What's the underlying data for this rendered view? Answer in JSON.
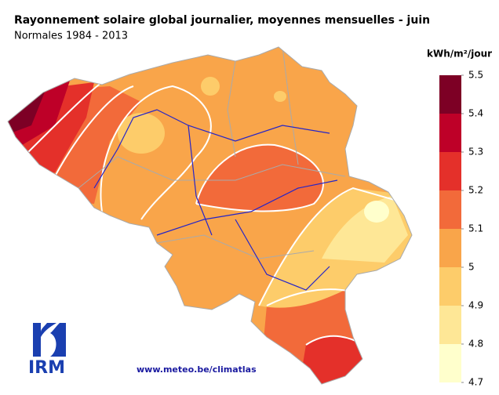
{
  "title": "Rayonnement solaire global journalier, moyennes mensuelles - juin",
  "subtitle": "Normales 1984 - 2013",
  "legend": {
    "unit": "kWh/m²/jour",
    "ticks": [
      5.5,
      5.4,
      5.3,
      5.2,
      5.1,
      5,
      4.9,
      4.8,
      4.7
    ],
    "colors": [
      "#7d0025",
      "#be0028",
      "#e4302a",
      "#f26a3a",
      "#f9a54a",
      "#fdcc6a",
      "#fee796",
      "#ffffcc"
    ]
  },
  "logo": "IRM",
  "url": "www.meteo.be/climatlas"
}
